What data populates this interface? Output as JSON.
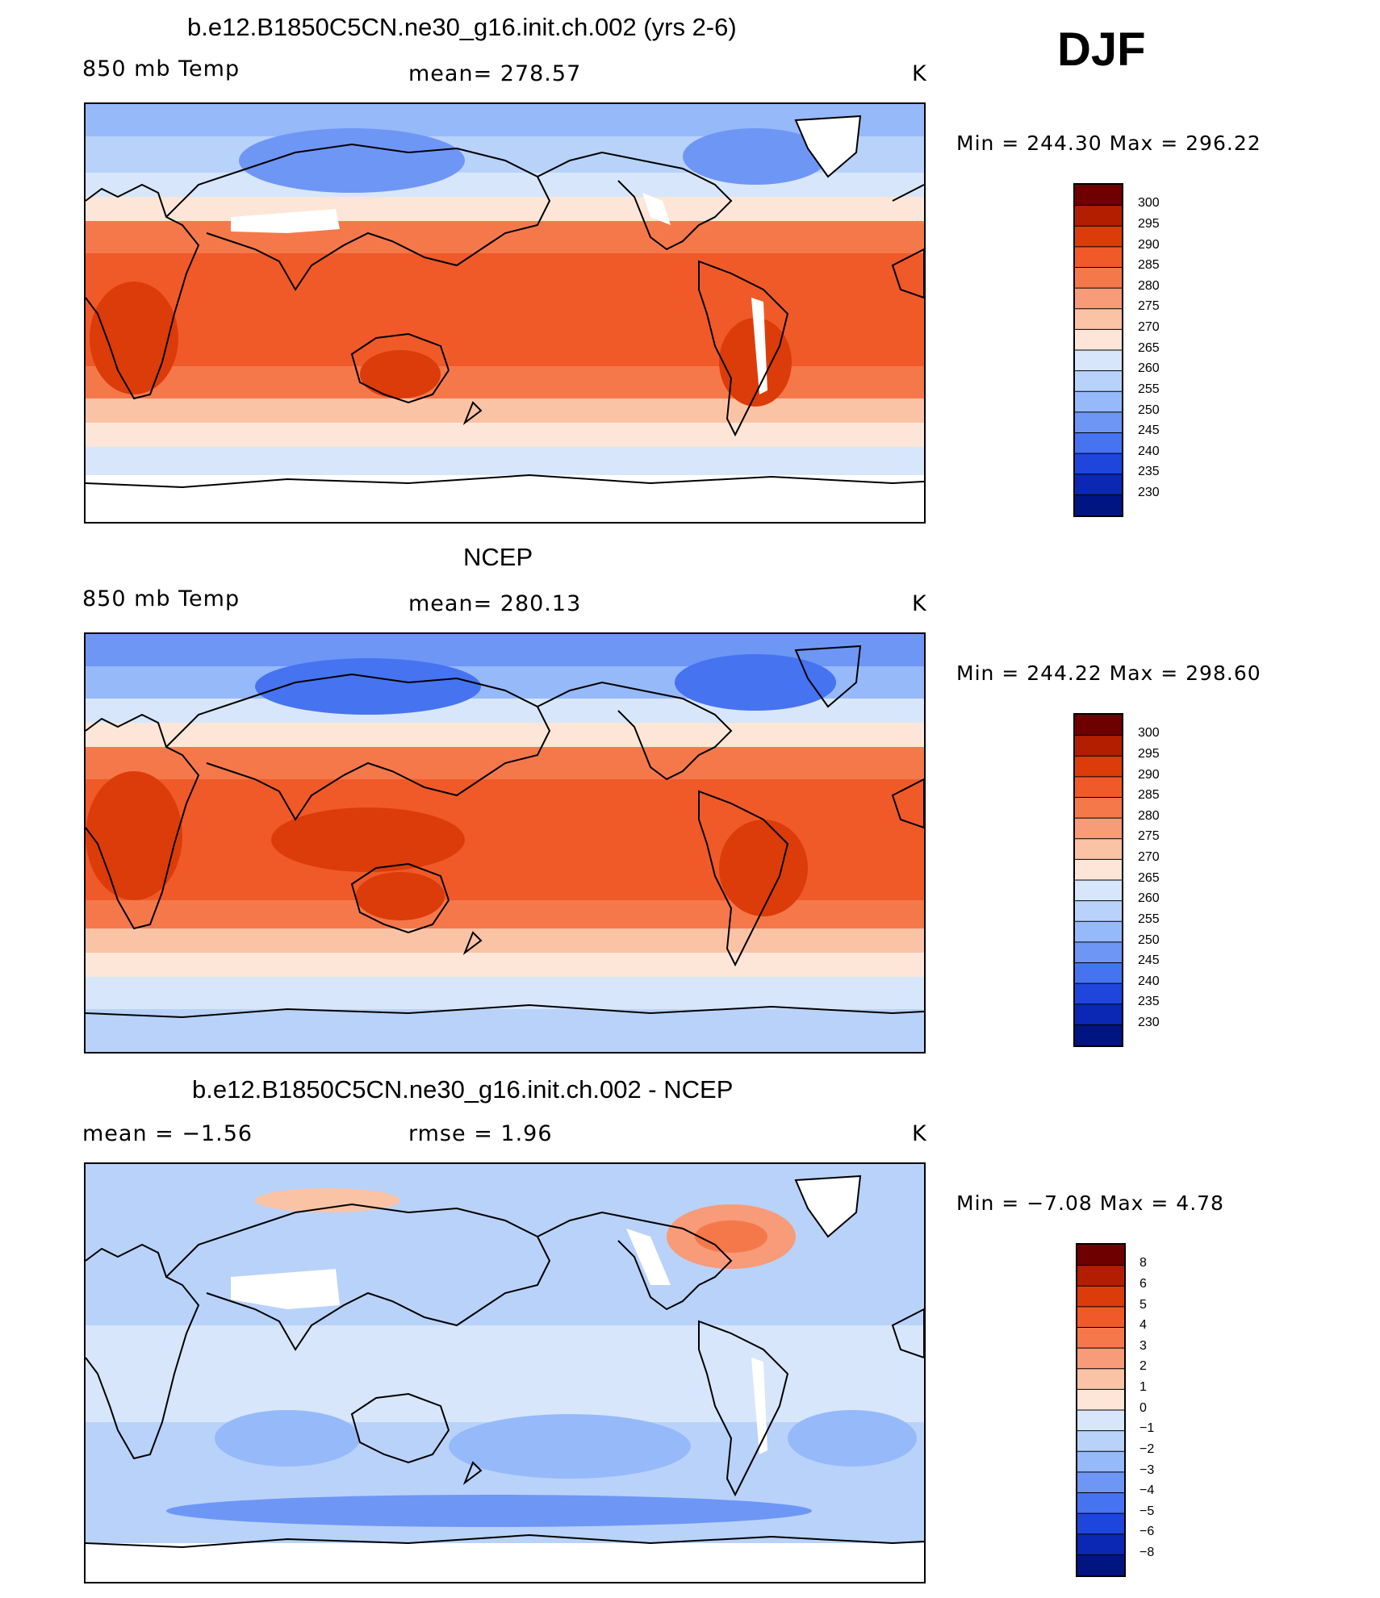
{
  "season": "DJF",
  "panels": [
    {
      "id": "model",
      "title": "b.e12.B1850C5CN.ne30_g16.init.ch.002 (yrs 2-6)",
      "left_label": "850 mb Temp",
      "center_label": "mean=  278.57",
      "unit": "K",
      "minmax": "Min  =  244.30  Max  =  296.22",
      "colorbar_labels": [
        "300",
        "295",
        "290",
        "285",
        "280",
        "275",
        "270",
        "265",
        "260",
        "255",
        "250",
        "245",
        "240",
        "235",
        "230"
      ]
    },
    {
      "id": "obs",
      "title": "NCEP",
      "left_label": "850 mb Temp",
      "center_label": "mean=  280.13",
      "unit": "K",
      "minmax": "Min  =  244.22  Max  =  298.60",
      "colorbar_labels": [
        "300",
        "295",
        "290",
        "285",
        "280",
        "275",
        "270",
        "265",
        "260",
        "255",
        "250",
        "245",
        "240",
        "235",
        "230"
      ]
    },
    {
      "id": "diff",
      "title": "b.e12.B1850C5CN.ne30_g16.init.ch.002 - NCEP",
      "left_label": "mean  =    −1.56",
      "center_label": "rmse  =     1.96",
      "unit": "K",
      "minmax": "Min  =    −7.08  Max  =      4.78",
      "colorbar_labels": [
        "8",
        "6",
        "5",
        "4",
        "3",
        "2",
        "1",
        "0",
        "−1",
        "−2",
        "−3",
        "−4",
        "−5",
        "−6",
        "−8"
      ]
    }
  ],
  "colors": {
    "temp_scale": [
      "#6e0000",
      "#b41e00",
      "#dc3c0a",
      "#f05a28",
      "#f5784b",
      "#f79b78",
      "#fac3a5",
      "#fde6d7",
      "#d7e6fa",
      "#b9d2fa",
      "#96b9fa",
      "#6e96f5",
      "#4673f0",
      "#1e46dc",
      "#0a28b4",
      "#001482"
    ],
    "diff_scale": [
      "#6e0000",
      "#b41e00",
      "#dc3c0a",
      "#f05a28",
      "#f5784b",
      "#f79b78",
      "#fac3a5",
      "#fde6d7",
      "#d7e6fa",
      "#b9d2fa",
      "#96b9fa",
      "#6e96f5",
      "#4673f0",
      "#1e46dc",
      "#0a28b4",
      "#001482"
    ],
    "land_outline": "#000000",
    "missing": "#ffffff"
  }
}
